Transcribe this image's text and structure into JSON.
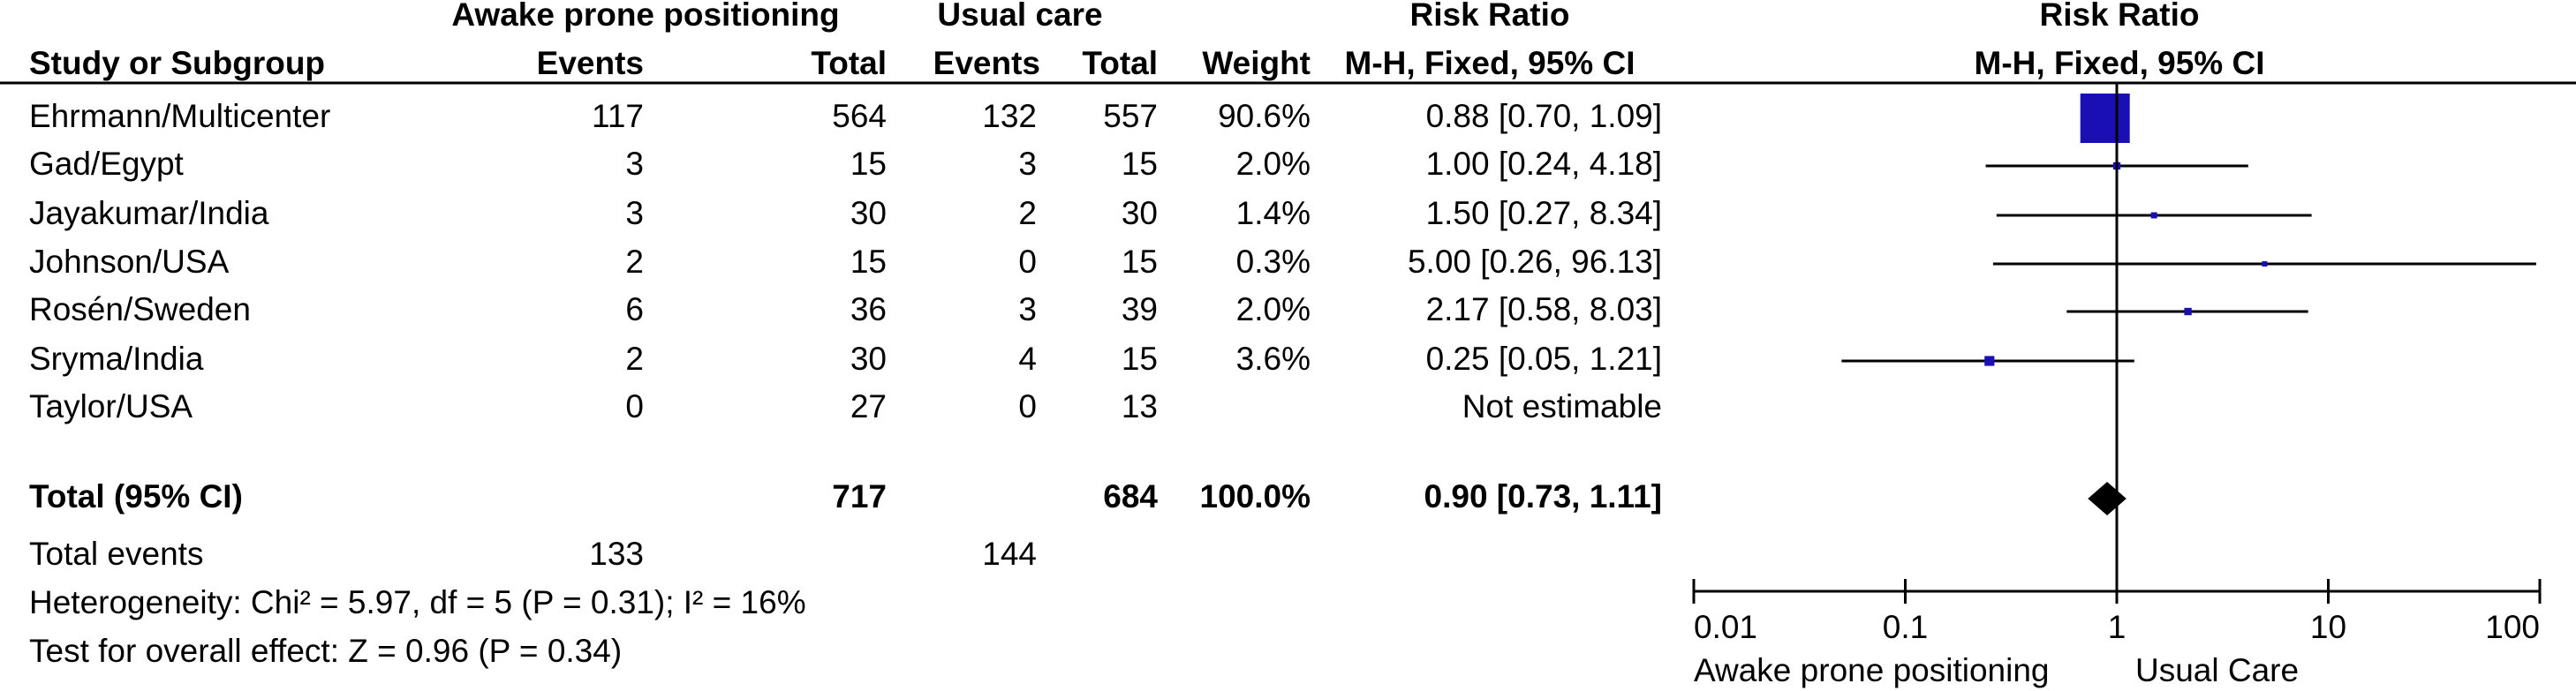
{
  "header": {
    "group1": "Awake prone positioning",
    "group2": "Usual care",
    "col_study": "Study or Subgroup",
    "col_events1": "Events",
    "col_total1": "Total",
    "col_events2": "Events",
    "col_total2": "Total",
    "col_weight": "Weight",
    "col_rr_title": "Risk Ratio",
    "col_rr_method": "M-H, Fixed, 95% CI",
    "plot_title": "Risk Ratio",
    "plot_method": "M-H, Fixed, 95% CI"
  },
  "studies": [
    {
      "name": "Ehrmann/Multicenter",
      "events1": 117,
      "total1": 564,
      "events2": 132,
      "total2": 557,
      "weight": 90.6,
      "weight_label": "90.6%",
      "rr": 0.88,
      "lo": 0.7,
      "hi": 1.09,
      "ci_label": "0.88 [0.70, 1.09]"
    },
    {
      "name": "Gad/Egypt",
      "events1": 3,
      "total1": 15,
      "events2": 3,
      "total2": 15,
      "weight": 2.0,
      "weight_label": "2.0%",
      "rr": 1.0,
      "lo": 0.24,
      "hi": 4.18,
      "ci_label": "1.00 [0.24, 4.18]"
    },
    {
      "name": "Jayakumar/India",
      "events1": 3,
      "total1": 30,
      "events2": 2,
      "total2": 30,
      "weight": 1.4,
      "weight_label": "1.4%",
      "rr": 1.5,
      "lo": 0.27,
      "hi": 8.34,
      "ci_label": "1.50 [0.27, 8.34]"
    },
    {
      "name": "Johnson/USA",
      "events1": 2,
      "total1": 15,
      "events2": 0,
      "total2": 15,
      "weight": 0.3,
      "weight_label": "0.3%",
      "rr": 5.0,
      "lo": 0.26,
      "hi": 96.13,
      "ci_label": "5.00 [0.26, 96.13]"
    },
    {
      "name": "Rosén/Sweden",
      "events1": 6,
      "total1": 36,
      "events2": 3,
      "total2": 39,
      "weight": 2.0,
      "weight_label": "2.0%",
      "rr": 2.17,
      "lo": 0.58,
      "hi": 8.03,
      "ci_label": "2.17 [0.58, 8.03]"
    },
    {
      "name": "Sryma/India",
      "events1": 2,
      "total1": 30,
      "events2": 4,
      "total2": 15,
      "weight": 3.6,
      "weight_label": "3.6%",
      "rr": 0.25,
      "lo": 0.05,
      "hi": 1.21,
      "ci_label": "0.25 [0.05, 1.21]"
    },
    {
      "name": "Taylor/USA",
      "events1": 0,
      "total1": 27,
      "events2": 0,
      "total2": 13,
      "ci_label": "Not estimable"
    }
  ],
  "total": {
    "label": "Total (95% CI)",
    "total1": 717,
    "total2": 684,
    "weight_label": "100.0%",
    "rr": 0.9,
    "lo": 0.73,
    "hi": 1.11,
    "ci_label": "0.90 [0.73, 1.11]"
  },
  "total_events": {
    "label": "Total events",
    "events1": 133,
    "events2": 144
  },
  "heterogeneity": "Heterogeneity: Chi² = 5.97, df = 5 (P = 0.31); I² = 16%",
  "overall_effect": "Test for overall effect: Z = 0.96 (P = 0.34)",
  "axis": {
    "scale": "log",
    "xlim": [
      0.01,
      100
    ],
    "xticks": [
      0.01,
      0.1,
      1,
      10,
      100
    ],
    "null_line": 1,
    "left_label": "Awake prone positioning",
    "right_label": "Usual Care",
    "marker_color": "#1a0fb4"
  }
}
